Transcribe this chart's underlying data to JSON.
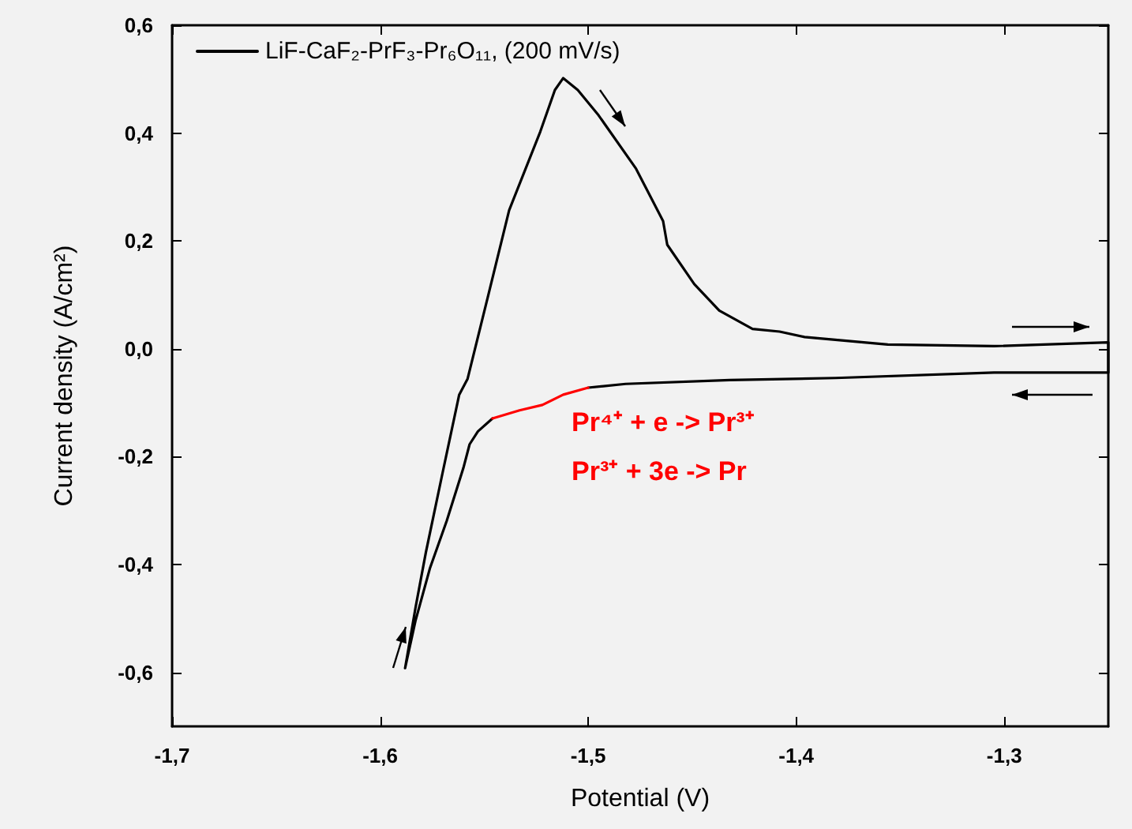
{
  "chart_data": {
    "type": "line",
    "xlabel": "Potential (V)",
    "ylabel": "Current density (A/cm²)",
    "xlim": [
      -1.7,
      -1.25
    ],
    "ylim": [
      -0.7,
      0.6
    ],
    "xticks": [
      {
        "value": -1.7,
        "label": "-1,7"
      },
      {
        "value": -1.6,
        "label": "-1,6"
      },
      {
        "value": -1.5,
        "label": "-1,5"
      },
      {
        "value": -1.4,
        "label": "-1,4"
      },
      {
        "value": -1.3,
        "label": "-1,3"
      }
    ],
    "yticks": [
      {
        "value": -0.6,
        "label": "-0,6"
      },
      {
        "value": -0.4,
        "label": "-0,4"
      },
      {
        "value": -0.2,
        "label": "-0,2"
      },
      {
        "value": 0,
        "label": "0,0"
      },
      {
        "value": 0.2,
        "label": "0,2"
      },
      {
        "value": 0.4,
        "label": "0,4"
      },
      {
        "value": 0.6,
        "label": "0,6"
      }
    ],
    "series": [
      {
        "name": "LiF-CaF₂-PrF₃-Pr₆O₁₁, (200 mV/s)",
        "color": "#000000",
        "x": [
          -1.588,
          -1.583,
          -1.578,
          -1.57,
          -1.562,
          -1.558,
          -1.548,
          -1.538,
          -1.523,
          -1.516,
          -1.512,
          -1.505,
          -1.495,
          -1.477,
          -1.464,
          -1.462,
          -1.449,
          -1.437,
          -1.421,
          -1.408,
          -1.396,
          -1.356,
          -1.305,
          -1.25,
          -1.25,
          -1.305,
          -1.381,
          -1.432,
          -1.482,
          -1.5,
          -1.512,
          -1.522,
          -1.533,
          -1.546,
          -1.553,
          -1.557,
          -1.56,
          -1.568,
          -1.576,
          -1.583,
          -1.588
        ],
        "values": [
          -0.592,
          -0.48,
          -0.377,
          -0.23,
          -0.085,
          -0.056,
          0.1,
          0.257,
          0.403,
          0.48,
          0.502,
          0.48,
          0.433,
          0.334,
          0.237,
          0.193,
          0.12,
          0.071,
          0.037,
          0.032,
          0.022,
          0.008,
          0.005,
          0.012,
          -0.044,
          -0.044,
          -0.054,
          -0.058,
          -0.065,
          -0.072,
          null,
          null,
          null,
          -0.129,
          -0.153,
          -0.177,
          -0.221,
          -0.319,
          -0.406,
          -0.504,
          -0.592
        ]
      },
      {
        "color": "#ff0000",
        "x": [
          -1.5,
          -1.512,
          -1.522,
          -1.533,
          -1.546
        ],
        "values": [
          -0.072,
          -0.085,
          -0.104,
          -0.114,
          -0.129
        ]
      }
    ],
    "annotations": [
      "Pr⁴⁺ + e -> Pr³⁺",
      "Pr³⁺ + 3e -> Pr"
    ],
    "grid": false,
    "legend": "top left",
    "marker": "none",
    "line_style": "solid"
  }
}
